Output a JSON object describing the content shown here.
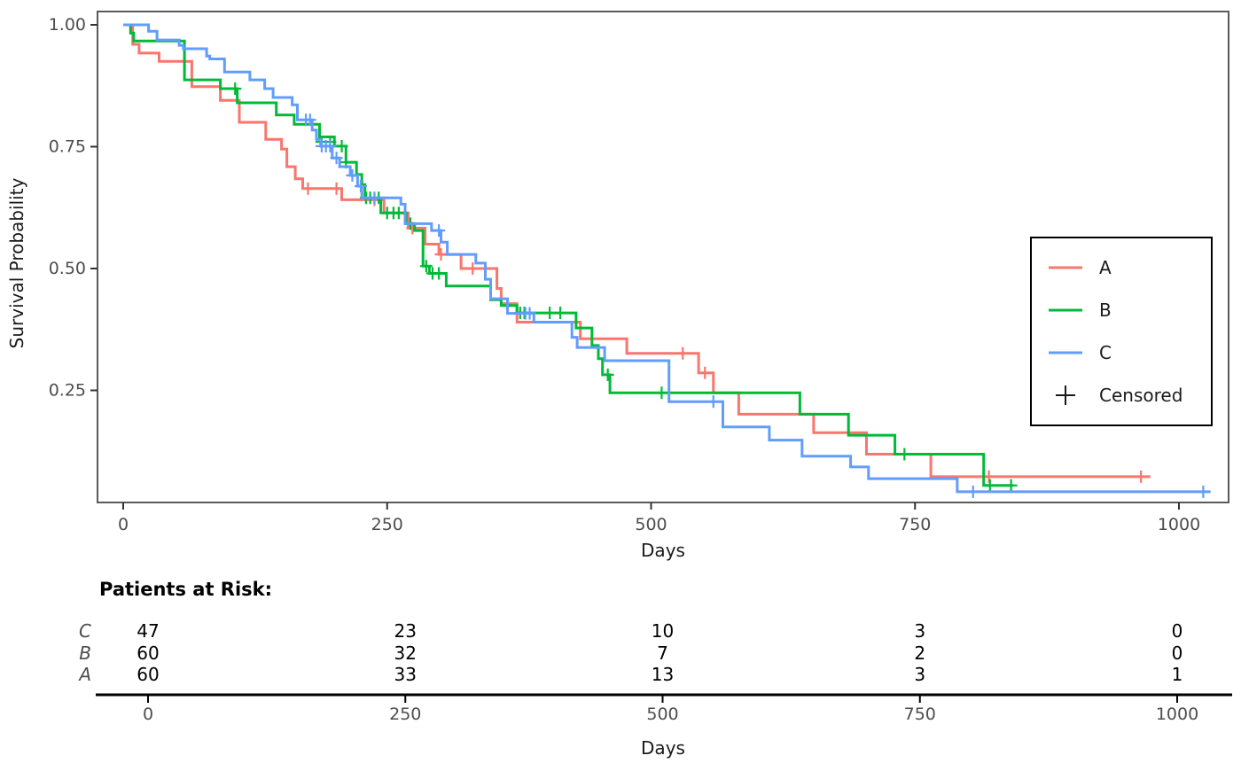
{
  "chart_data": {
    "type": "line",
    "subtype": "kaplan-meier-step-survival",
    "title": "",
    "xlabel": "Days",
    "ylabel": "Survival Probability",
    "xlim": [
      0,
      1040
    ],
    "ylim": [
      0,
      1.0
    ],
    "grid": false,
    "x_ticks": [
      0,
      250,
      500,
      750,
      1000
    ],
    "x_tick_labels": [
      "0",
      "250",
      "500",
      "750",
      "1000"
    ],
    "y_ticks": [
      1.0,
      0.75,
      0.5,
      0.25
    ],
    "y_tick_labels": [
      "1.00",
      "0.75",
      "0.50",
      "0.25"
    ],
    "legend": {
      "position": "right",
      "entries": [
        "A",
        "B",
        "C",
        "Censored"
      ],
      "censored_marker": "+"
    },
    "series": [
      {
        "name": "A",
        "color": "#F8766D",
        "end_day": 973,
        "steps": [
          [
            0,
            1.0
          ],
          [
            9,
            0.96
          ],
          [
            15,
            0.942
          ],
          [
            34,
            0.925
          ],
          [
            65,
            0.873
          ],
          [
            92,
            0.845
          ],
          [
            110,
            0.8
          ],
          [
            135,
            0.765
          ],
          [
            150,
            0.745
          ],
          [
            155,
            0.709
          ],
          [
            163,
            0.684
          ],
          [
            170,
            0.664
          ],
          [
            207,
            0.641
          ],
          [
            247,
            0.614
          ],
          [
            270,
            0.583
          ],
          [
            286,
            0.55
          ],
          [
            299,
            0.529
          ],
          [
            320,
            0.5
          ],
          [
            354,
            0.459
          ],
          [
            358,
            0.428
          ],
          [
            373,
            0.39
          ],
          [
            433,
            0.356
          ],
          [
            477,
            0.326
          ],
          [
            545,
            0.286
          ],
          [
            559,
            0.245
          ],
          [
            583,
            0.201
          ],
          [
            654,
            0.163
          ],
          [
            704,
            0.119
          ],
          [
            765,
            0.073
          ]
        ],
        "censored": [
          [
            175,
            0.664
          ],
          [
            202,
            0.664
          ],
          [
            238,
            0.641
          ],
          [
            274,
            0.583
          ],
          [
            301,
            0.529
          ],
          [
            331,
            0.5
          ],
          [
            530,
            0.326
          ],
          [
            551,
            0.286
          ],
          [
            820,
            0.073
          ],
          [
            964,
            0.073
          ]
        ]
      },
      {
        "name": "B",
        "color": "#00BA38",
        "end_day": 843,
        "steps": [
          [
            0,
            1.0
          ],
          [
            7,
            0.983
          ],
          [
            10,
            0.967
          ],
          [
            58,
            0.887
          ],
          [
            92,
            0.869
          ],
          [
            108,
            0.84
          ],
          [
            145,
            0.815
          ],
          [
            162,
            0.796
          ],
          [
            186,
            0.77
          ],
          [
            200,
            0.751
          ],
          [
            211,
            0.718
          ],
          [
            221,
            0.693
          ],
          [
            226,
            0.672
          ],
          [
            229,
            0.645
          ],
          [
            244,
            0.614
          ],
          [
            268,
            0.592
          ],
          [
            276,
            0.578
          ],
          [
            284,
            0.505
          ],
          [
            290,
            0.49
          ],
          [
            306,
            0.464
          ],
          [
            348,
            0.436
          ],
          [
            358,
            0.424
          ],
          [
            373,
            0.409
          ],
          [
            429,
            0.378
          ],
          [
            444,
            0.342
          ],
          [
            450,
            0.315
          ],
          [
            454,
            0.282
          ],
          [
            461,
            0.245
          ],
          [
            641,
            0.201
          ],
          [
            687,
            0.158
          ],
          [
            731,
            0.119
          ],
          [
            815,
            0.055
          ]
        ],
        "censored": [
          [
            106,
            0.869
          ],
          [
            188,
            0.76
          ],
          [
            196,
            0.76
          ],
          [
            207,
            0.751
          ],
          [
            211,
            0.718
          ],
          [
            230,
            0.645
          ],
          [
            234,
            0.645
          ],
          [
            242,
            0.645
          ],
          [
            250,
            0.614
          ],
          [
            256,
            0.614
          ],
          [
            261,
            0.614
          ],
          [
            272,
            0.592
          ],
          [
            287,
            0.505
          ],
          [
            293,
            0.49
          ],
          [
            299,
            0.49
          ],
          [
            376,
            0.409
          ],
          [
            380,
            0.409
          ],
          [
            404,
            0.409
          ],
          [
            414,
            0.409
          ],
          [
            459,
            0.282
          ],
          [
            510,
            0.245
          ],
          [
            740,
            0.119
          ],
          [
            821,
            0.055
          ],
          [
            841,
            0.055
          ]
        ]
      },
      {
        "name": "C",
        "color": "#619CFF",
        "end_day": 1030,
        "steps": [
          [
            0,
            1.0
          ],
          [
            24,
            0.987
          ],
          [
            32,
            0.969
          ],
          [
            53,
            0.958
          ],
          [
            57,
            0.951
          ],
          [
            79,
            0.936
          ],
          [
            82,
            0.93
          ],
          [
            96,
            0.903
          ],
          [
            120,
            0.887
          ],
          [
            134,
            0.869
          ],
          [
            142,
            0.851
          ],
          [
            160,
            0.836
          ],
          [
            165,
            0.805
          ],
          [
            179,
            0.784
          ],
          [
            183,
            0.765
          ],
          [
            187,
            0.751
          ],
          [
            198,
            0.727
          ],
          [
            205,
            0.709
          ],
          [
            215,
            0.691
          ],
          [
            222,
            0.669
          ],
          [
            226,
            0.645
          ],
          [
            263,
            0.632
          ],
          [
            267,
            0.592
          ],
          [
            292,
            0.578
          ],
          [
            301,
            0.554
          ],
          [
            307,
            0.529
          ],
          [
            334,
            0.511
          ],
          [
            343,
            0.478
          ],
          [
            348,
            0.438
          ],
          [
            364,
            0.408
          ],
          [
            389,
            0.39
          ],
          [
            425,
            0.359
          ],
          [
            430,
            0.338
          ],
          [
            456,
            0.311
          ],
          [
            517,
            0.227
          ],
          [
            568,
            0.175
          ],
          [
            612,
            0.148
          ],
          [
            643,
            0.115
          ],
          [
            689,
            0.093
          ],
          [
            706,
            0.069
          ],
          [
            790,
            0.042
          ]
        ],
        "censored": [
          [
            173,
            0.805
          ],
          [
            177,
            0.805
          ],
          [
            188,
            0.751
          ],
          [
            192,
            0.751
          ],
          [
            196,
            0.751
          ],
          [
            202,
            0.727
          ],
          [
            217,
            0.691
          ],
          [
            225,
            0.669
          ],
          [
            238,
            0.645
          ],
          [
            299,
            0.578
          ],
          [
            381,
            0.408
          ],
          [
            385,
            0.408
          ],
          [
            559,
            0.227
          ],
          [
            805,
            0.042
          ],
          [
            1023,
            0.042
          ]
        ]
      }
    ]
  },
  "risk_table": {
    "title": "Patients at Risk:",
    "xlabel": "Days",
    "x_ticks": [
      0,
      250,
      500,
      750,
      1000
    ],
    "x_tick_labels": [
      "0",
      "250",
      "500",
      "750",
      "1000"
    ],
    "rows": [
      {
        "label": "C",
        "values": [
          "47",
          "23",
          "10",
          "3",
          "0"
        ]
      },
      {
        "label": "B",
        "values": [
          "60",
          "32",
          "7",
          "2",
          "0"
        ]
      },
      {
        "label": "A",
        "values": [
          "60",
          "33",
          "13",
          "3",
          "1"
        ]
      }
    ]
  },
  "colors": {
    "series_A": "#F8766D",
    "series_B": "#00BA38",
    "series_C": "#619CFF",
    "panel_border": "#5a5a5a",
    "tick_text": "#4d4d4d",
    "axis_text": "#1a1a1a",
    "risk_axis_line": "#000000",
    "background": "#ffffff"
  }
}
